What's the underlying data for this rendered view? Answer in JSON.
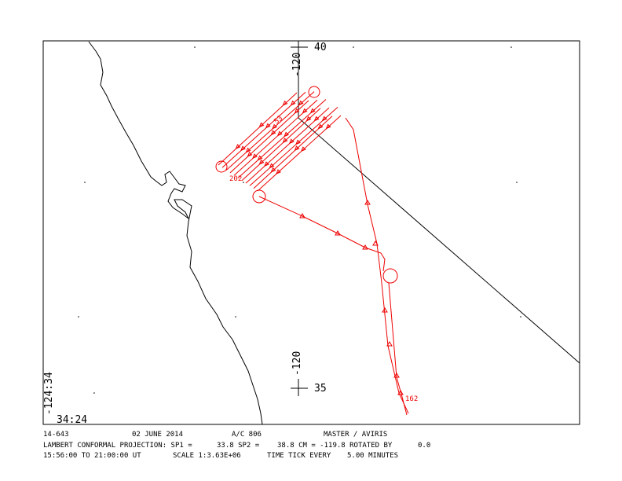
{
  "map": {
    "labels": {
      "lat_top": "40",
      "lon_top": "-120",
      "lon_bottom": "-120",
      "lat_bottom": "35",
      "corner_lon": "-124:34",
      "corner_lat": "34:24"
    },
    "track_labels": [
      "202",
      "162",
      "53"
    ],
    "footer": {
      "row1": [
        "14-643",
        "02 JUNE 2014",
        "A/C 806",
        "MASTER / AVIRIS"
      ],
      "row2": [
        "LAMBERT CONFORMAL PROJECTION:  SP1 =",
        "33.8 SP2 =",
        "38.8 CM = -119.8 ROTATED BY",
        "0.0"
      ],
      "row3": [
        "15:56:00 TO 21:00:00 UT",
        "SCALE 1:3.63E+06",
        "TIME TICK EVERY",
        "5.00 MINUTES"
      ]
    }
  }
}
